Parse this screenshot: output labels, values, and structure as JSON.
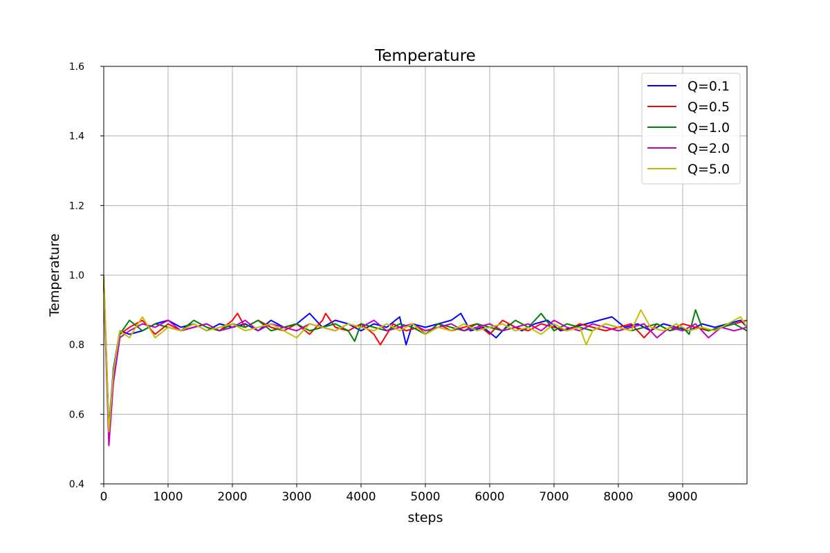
{
  "chart_data": {
    "type": "line",
    "title": "Temperature",
    "xlabel": "steps",
    "ylabel": "Temperature",
    "xlim": [
      0,
      10000
    ],
    "ylim": [
      0.4,
      1.6
    ],
    "xticks": [
      0,
      1000,
      2000,
      3000,
      4000,
      5000,
      6000,
      7000,
      8000,
      9000
    ],
    "xtick_labels": [
      "0",
      "1000",
      "2000",
      "3000",
      "4000",
      "5000",
      "6000",
      "7000",
      "8000",
      "9000"
    ],
    "yticks": [
      0.4,
      0.6,
      0.8,
      1.0,
      1.2,
      1.4,
      1.6
    ],
    "ytick_labels": [
      "0.4",
      "0.6",
      "0.8",
      "1.0",
      "1.2",
      "1.4",
      "1.6"
    ],
    "grid": true,
    "legend_position": "top-right",
    "series": [
      {
        "name": "Q=0.1",
        "color": "#0000ff",
        "x": [
          0,
          80,
          150,
          250,
          400,
          600,
          800,
          1000,
          1200,
          1400,
          1600,
          1800,
          2000,
          2200,
          2400,
          2600,
          2800,
          3000,
          3200,
          3400,
          3600,
          3800,
          4000,
          4200,
          4400,
          4600,
          4700,
          4800,
          5000,
          5200,
          5400,
          5550,
          5700,
          5900,
          6100,
          6300,
          6500,
          6700,
          6900,
          7100,
          7300,
          7500,
          7700,
          7900,
          8100,
          8300,
          8500,
          8700,
          8900,
          9100,
          9300,
          9500,
          9700,
          9900,
          10000
        ],
        "y": [
          1.0,
          0.56,
          0.73,
          0.84,
          0.83,
          0.84,
          0.86,
          0.87,
          0.85,
          0.86,
          0.84,
          0.86,
          0.85,
          0.86,
          0.84,
          0.87,
          0.85,
          0.86,
          0.89,
          0.85,
          0.87,
          0.86,
          0.84,
          0.86,
          0.85,
          0.88,
          0.8,
          0.86,
          0.85,
          0.86,
          0.87,
          0.89,
          0.84,
          0.85,
          0.82,
          0.86,
          0.84,
          0.86,
          0.87,
          0.84,
          0.85,
          0.86,
          0.87,
          0.88,
          0.85,
          0.86,
          0.84,
          0.86,
          0.85,
          0.84,
          0.86,
          0.85,
          0.86,
          0.87,
          0.85
        ]
      },
      {
        "name": "Q=0.5",
        "color": "#ff0000",
        "x": [
          0,
          80,
          150,
          250,
          400,
          600,
          800,
          1000,
          1200,
          1400,
          1600,
          1800,
          2000,
          2080,
          2200,
          2400,
          2600,
          2800,
          3000,
          3200,
          3400,
          3450,
          3600,
          3800,
          4000,
          4200,
          4300,
          4500,
          4700,
          4900,
          5000,
          5200,
          5400,
          5600,
          5800,
          6000,
          6200,
          6400,
          6600,
          6800,
          7000,
          7200,
          7400,
          7600,
          7800,
          8000,
          8200,
          8400,
          8600,
          8800,
          9000,
          9200,
          9400,
          9600,
          9800,
          10000
        ],
        "y": [
          0.98,
          0.54,
          0.7,
          0.83,
          0.85,
          0.87,
          0.83,
          0.86,
          0.84,
          0.85,
          0.86,
          0.84,
          0.87,
          0.89,
          0.85,
          0.87,
          0.85,
          0.84,
          0.86,
          0.83,
          0.87,
          0.89,
          0.85,
          0.84,
          0.86,
          0.83,
          0.8,
          0.86,
          0.84,
          0.85,
          0.83,
          0.86,
          0.84,
          0.85,
          0.86,
          0.83,
          0.87,
          0.85,
          0.84,
          0.86,
          0.85,
          0.84,
          0.86,
          0.85,
          0.84,
          0.85,
          0.86,
          0.82,
          0.86,
          0.84,
          0.86,
          0.85,
          0.84,
          0.85,
          0.86,
          0.87
        ]
      },
      {
        "name": "Q=1.0",
        "color": "#008000",
        "x": [
          0,
          80,
          150,
          250,
          400,
          600,
          800,
          1000,
          1200,
          1400,
          1600,
          1800,
          2000,
          2200,
          2400,
          2600,
          2800,
          3000,
          3200,
          3400,
          3600,
          3800,
          3900,
          4000,
          4200,
          4400,
          4600,
          4800,
          5000,
          5200,
          5400,
          5600,
          5800,
          6000,
          6200,
          6400,
          6600,
          6800,
          7000,
          7200,
          7400,
          7600,
          7800,
          8000,
          8200,
          8400,
          8600,
          8800,
          9000,
          9100,
          9200,
          9300,
          9400,
          9600,
          9800,
          10000
        ],
        "y": [
          0.99,
          0.55,
          0.71,
          0.83,
          0.87,
          0.84,
          0.86,
          0.85,
          0.84,
          0.87,
          0.85,
          0.84,
          0.86,
          0.85,
          0.87,
          0.84,
          0.85,
          0.86,
          0.84,
          0.85,
          0.86,
          0.84,
          0.81,
          0.86,
          0.85,
          0.84,
          0.86,
          0.85,
          0.83,
          0.86,
          0.85,
          0.84,
          0.86,
          0.85,
          0.84,
          0.87,
          0.85,
          0.89,
          0.84,
          0.86,
          0.85,
          0.84,
          0.86,
          0.85,
          0.84,
          0.85,
          0.86,
          0.84,
          0.85,
          0.83,
          0.9,
          0.85,
          0.84,
          0.85,
          0.86,
          0.84
        ]
      },
      {
        "name": "Q=2.0",
        "color": "#c000c0",
        "x": [
          0,
          80,
          150,
          250,
          400,
          600,
          800,
          1000,
          1200,
          1400,
          1600,
          1800,
          2000,
          2200,
          2400,
          2600,
          2800,
          3000,
          3200,
          3400,
          3600,
          3800,
          4000,
          4200,
          4400,
          4600,
          4800,
          5000,
          5200,
          5400,
          5600,
          5800,
          6000,
          6200,
          6400,
          6600,
          6800,
          7000,
          7200,
          7400,
          7600,
          7800,
          8000,
          8200,
          8400,
          8600,
          8800,
          9000,
          9200,
          9400,
          9600,
          9800,
          10000
        ],
        "y": [
          0.97,
          0.51,
          0.69,
          0.82,
          0.84,
          0.86,
          0.85,
          0.87,
          0.84,
          0.85,
          0.86,
          0.84,
          0.85,
          0.87,
          0.84,
          0.86,
          0.85,
          0.84,
          0.86,
          0.85,
          0.84,
          0.86,
          0.85,
          0.87,
          0.84,
          0.85,
          0.86,
          0.84,
          0.85,
          0.86,
          0.84,
          0.85,
          0.86,
          0.84,
          0.85,
          0.86,
          0.84,
          0.87,
          0.85,
          0.84,
          0.86,
          0.85,
          0.84,
          0.85,
          0.86,
          0.82,
          0.85,
          0.84,
          0.86,
          0.82,
          0.85,
          0.84,
          0.85
        ]
      },
      {
        "name": "Q=5.0",
        "color": "#c0c000",
        "x": [
          0,
          80,
          150,
          250,
          400,
          600,
          800,
          1000,
          1200,
          1400,
          1600,
          1800,
          2000,
          2200,
          2400,
          2600,
          2800,
          3000,
          3200,
          3400,
          3600,
          3800,
          4000,
          4200,
          4400,
          4600,
          4800,
          5000,
          5200,
          5400,
          5600,
          5800,
          6000,
          6200,
          6400,
          6600,
          6800,
          7000,
          7200,
          7400,
          7500,
          7600,
          7800,
          8000,
          8200,
          8350,
          8500,
          8700,
          8900,
          9100,
          9300,
          9500,
          9700,
          9900,
          10000
        ],
        "y": [
          1.0,
          0.55,
          0.72,
          0.84,
          0.82,
          0.88,
          0.82,
          0.85,
          0.84,
          0.86,
          0.84,
          0.85,
          0.86,
          0.84,
          0.85,
          0.86,
          0.84,
          0.82,
          0.86,
          0.85,
          0.84,
          0.86,
          0.85,
          0.84,
          0.86,
          0.84,
          0.86,
          0.83,
          0.85,
          0.84,
          0.86,
          0.84,
          0.85,
          0.86,
          0.84,
          0.85,
          0.83,
          0.86,
          0.84,
          0.85,
          0.8,
          0.84,
          0.86,
          0.85,
          0.84,
          0.9,
          0.85,
          0.84,
          0.86,
          0.84,
          0.85,
          0.84,
          0.86,
          0.88,
          0.85
        ]
      }
    ]
  }
}
